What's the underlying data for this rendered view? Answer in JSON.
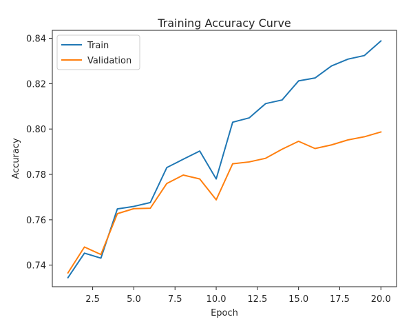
{
  "chart_data": {
    "type": "line",
    "title": "Training Accuracy Curve",
    "xlabel": "Epoch",
    "ylabel": "Accuracy",
    "xlim": [
      0.05,
      20.95
    ],
    "ylim": [
      0.7305,
      0.8435
    ],
    "xticks": [
      2.5,
      5.0,
      7.5,
      10.0,
      12.5,
      15.0,
      17.5,
      20.0
    ],
    "xtick_labels": [
      "2.5",
      "5.0",
      "7.5",
      "10.0",
      "12.5",
      "15.0",
      "17.5",
      "20.0"
    ],
    "yticks": [
      0.74,
      0.76,
      0.78,
      0.8,
      0.82,
      0.84
    ],
    "ytick_labels": [
      "0.74",
      "0.76",
      "0.78",
      "0.80",
      "0.82",
      "0.84"
    ],
    "grid": false,
    "legend_position": "top-left",
    "x": [
      1,
      2,
      3,
      4,
      5,
      6,
      7,
      8,
      9,
      10,
      11,
      12,
      13,
      14,
      15,
      16,
      17,
      18,
      19,
      20
    ],
    "series": [
      {
        "name": "Train",
        "color": "#1f77b4",
        "values": [
          0.7345,
          0.7453,
          0.7431,
          0.7648,
          0.7659,
          0.7676,
          0.783,
          0.7867,
          0.7903,
          0.778,
          0.803,
          0.8049,
          0.8112,
          0.8128,
          0.8212,
          0.8225,
          0.8278,
          0.8308,
          0.8324,
          0.8388
        ]
      },
      {
        "name": "Validation",
        "color": "#ff7f0e",
        "values": [
          0.7366,
          0.748,
          0.7447,
          0.7627,
          0.7649,
          0.7651,
          0.776,
          0.7797,
          0.778,
          0.7688,
          0.7847,
          0.7855,
          0.7871,
          0.7911,
          0.7946,
          0.7914,
          0.793,
          0.7952,
          0.7966,
          0.7987
        ]
      }
    ]
  }
}
